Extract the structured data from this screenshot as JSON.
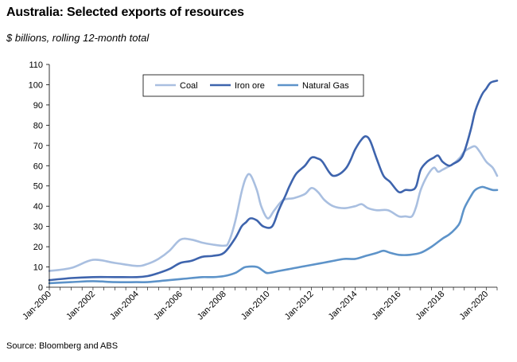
{
  "chart_data": {
    "type": "line",
    "title": "Australia: Selected exports of resources",
    "subtitle": "$ billions, rolling 12-month total",
    "source": "Source: Bloomberg and ABS",
    "xlabel": "",
    "ylabel": "",
    "ylim": [
      0,
      110
    ],
    "xlim": [
      2000.0,
      2020.5
    ],
    "y_ticks": [
      0,
      10,
      20,
      30,
      40,
      50,
      60,
      70,
      80,
      90,
      100,
      110
    ],
    "x_ticks": [
      {
        "label": "Jan-2000",
        "x": 2000
      },
      {
        "label": "Jan-2002",
        "x": 2002
      },
      {
        "label": "Jan-2004",
        "x": 2004
      },
      {
        "label": "Jan-2006",
        "x": 2006
      },
      {
        "label": "Jan-2008",
        "x": 2008
      },
      {
        "label": "Jan-2010",
        "x": 2010
      },
      {
        "label": "Jan-2012",
        "x": 2012
      },
      {
        "label": "Jan-2014",
        "x": 2014
      },
      {
        "label": "Jan-2016",
        "x": 2016
      },
      {
        "label": "Jan-2018",
        "x": 2018
      },
      {
        "label": "Jan-2020",
        "x": 2020
      }
    ],
    "grid": false,
    "legend_position": "top-center",
    "series": [
      {
        "name": "Coal",
        "color": "#a9bfe0",
        "points": [
          [
            2000,
            8
          ],
          [
            2001,
            9.5
          ],
          [
            2002,
            13.5
          ],
          [
            2003,
            12
          ],
          [
            2004,
            10.5
          ],
          [
            2004.5,
            11.5
          ],
          [
            2005,
            14
          ],
          [
            2005.5,
            18
          ],
          [
            2006,
            23.5
          ],
          [
            2006.5,
            23.5
          ],
          [
            2007,
            22
          ],
          [
            2007.5,
            21
          ],
          [
            2008,
            20.5
          ],
          [
            2008.2,
            22
          ],
          [
            2008.5,
            32
          ],
          [
            2008.8,
            47
          ],
          [
            2009,
            54
          ],
          [
            2009.2,
            55.5
          ],
          [
            2009.5,
            48
          ],
          [
            2009.7,
            40
          ],
          [
            2010,
            34
          ],
          [
            2010.3,
            38
          ],
          [
            2010.7,
            43
          ],
          [
            2011.2,
            44
          ],
          [
            2011.7,
            46
          ],
          [
            2012,
            49
          ],
          [
            2012.3,
            47
          ],
          [
            2012.6,
            43
          ],
          [
            2013,
            40
          ],
          [
            2013.5,
            39
          ],
          [
            2014,
            40
          ],
          [
            2014.3,
            41
          ],
          [
            2014.6,
            39
          ],
          [
            2015,
            38
          ],
          [
            2015.5,
            38
          ],
          [
            2016,
            35
          ],
          [
            2016.3,
            35
          ],
          [
            2016.6,
            35
          ],
          [
            2016.8,
            40
          ],
          [
            2017,
            48
          ],
          [
            2017.3,
            55
          ],
          [
            2017.6,
            59
          ],
          [
            2017.8,
            57
          ],
          [
            2018,
            58
          ],
          [
            2018.5,
            61
          ],
          [
            2018.8,
            64
          ],
          [
            2019,
            67
          ],
          [
            2019.3,
            69
          ],
          [
            2019.5,
            69.5
          ],
          [
            2019.7,
            67
          ],
          [
            2020,
            62
          ],
          [
            2020.3,
            59
          ],
          [
            2020.5,
            55
          ]
        ]
      },
      {
        "name": "Iron ore",
        "color": "#3e64ad",
        "points": [
          [
            2000,
            3.5
          ],
          [
            2001,
            4.5
          ],
          [
            2002,
            5
          ],
          [
            2003,
            5
          ],
          [
            2004,
            5
          ],
          [
            2004.5,
            5.5
          ],
          [
            2005,
            7
          ],
          [
            2005.5,
            9
          ],
          [
            2006,
            12
          ],
          [
            2006.5,
            13
          ],
          [
            2007,
            15
          ],
          [
            2007.5,
            15.5
          ],
          [
            2008,
            17
          ],
          [
            2008.5,
            24
          ],
          [
            2008.8,
            30
          ],
          [
            2009,
            32
          ],
          [
            2009.2,
            34
          ],
          [
            2009.5,
            33
          ],
          [
            2009.8,
            30
          ],
          [
            2010.2,
            30
          ],
          [
            2010.5,
            38
          ],
          [
            2010.8,
            45
          ],
          [
            2011,
            50
          ],
          [
            2011.3,
            56
          ],
          [
            2011.7,
            60
          ],
          [
            2012,
            64
          ],
          [
            2012.3,
            63.5
          ],
          [
            2012.5,
            62
          ],
          [
            2012.8,
            57
          ],
          [
            2013,
            55
          ],
          [
            2013.3,
            56
          ],
          [
            2013.6,
            59
          ],
          [
            2013.8,
            63
          ],
          [
            2014,
            68
          ],
          [
            2014.3,
            73
          ],
          [
            2014.5,
            74.5
          ],
          [
            2014.7,
            72
          ],
          [
            2015,
            63
          ],
          [
            2015.3,
            55
          ],
          [
            2015.6,
            52
          ],
          [
            2016,
            47
          ],
          [
            2016.3,
            48
          ],
          [
            2016.6,
            48
          ],
          [
            2016.8,
            50
          ],
          [
            2017,
            58
          ],
          [
            2017.3,
            62
          ],
          [
            2017.6,
            64
          ],
          [
            2017.8,
            65
          ],
          [
            2018,
            62
          ],
          [
            2018.3,
            60
          ],
          [
            2018.5,
            61
          ],
          [
            2018.8,
            63
          ],
          [
            2019,
            67
          ],
          [
            2019.3,
            78
          ],
          [
            2019.5,
            87
          ],
          [
            2019.8,
            95
          ],
          [
            2020,
            98
          ],
          [
            2020.2,
            101
          ],
          [
            2020.5,
            102
          ]
        ]
      },
      {
        "name": "Natural Gas",
        "color": "#5d93c9",
        "points": [
          [
            2000,
            2
          ],
          [
            2001,
            2.5
          ],
          [
            2002,
            3
          ],
          [
            2003,
            2.5
          ],
          [
            2004,
            2.5
          ],
          [
            2004.5,
            2.5
          ],
          [
            2005,
            3
          ],
          [
            2005.5,
            3.5
          ],
          [
            2006,
            4
          ],
          [
            2006.5,
            4.5
          ],
          [
            2007,
            5
          ],
          [
            2007.5,
            5
          ],
          [
            2008,
            5.5
          ],
          [
            2008.5,
            7
          ],
          [
            2008.8,
            9
          ],
          [
            2009,
            10
          ],
          [
            2009.5,
            10
          ],
          [
            2009.8,
            8
          ],
          [
            2010,
            7
          ],
          [
            2010.5,
            8
          ],
          [
            2011,
            9
          ],
          [
            2011.5,
            10
          ],
          [
            2012,
            11
          ],
          [
            2012.5,
            12
          ],
          [
            2013,
            13
          ],
          [
            2013.5,
            14
          ],
          [
            2014,
            14
          ],
          [
            2014.5,
            15.5
          ],
          [
            2015,
            17
          ],
          [
            2015.3,
            18
          ],
          [
            2015.6,
            17
          ],
          [
            2016,
            16
          ],
          [
            2016.5,
            16
          ],
          [
            2017,
            17
          ],
          [
            2017.5,
            20
          ],
          [
            2018,
            24
          ],
          [
            2018.3,
            26
          ],
          [
            2018.6,
            29
          ],
          [
            2018.8,
            32
          ],
          [
            2019,
            39
          ],
          [
            2019.3,
            45
          ],
          [
            2019.5,
            48
          ],
          [
            2019.8,
            49.5
          ],
          [
            2020,
            49
          ],
          [
            2020.3,
            48
          ],
          [
            2020.5,
            48
          ]
        ]
      }
    ]
  }
}
